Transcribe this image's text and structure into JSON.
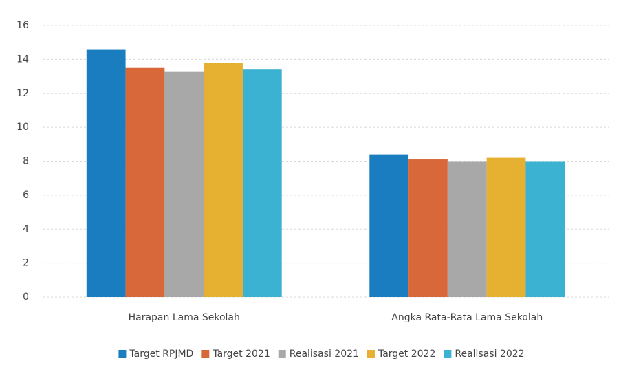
{
  "chart_data": {
    "type": "bar",
    "categories": [
      "Harapan Lama Sekolah",
      "Angka Rata-Rata Lama Sekolah"
    ],
    "series": [
      {
        "name": "Target RPJMD",
        "color": "#1a7dc0",
        "values": [
          14.6,
          8.4
        ]
      },
      {
        "name": "Target 2021",
        "color": "#d8683a",
        "values": [
          13.5,
          8.1
        ]
      },
      {
        "name": "Realisasi 2021",
        "color": "#a8a8a8",
        "values": [
          13.3,
          8.0
        ]
      },
      {
        "name": "Target 2022",
        "color": "#e6b030",
        "values": [
          13.8,
          8.2
        ]
      },
      {
        "name": "Realisasi 2022",
        "color": "#3cb2d2",
        "values": [
          13.4,
          8.0
        ]
      }
    ],
    "ylim": [
      0,
      16
    ],
    "yticks": [
      0,
      2,
      4,
      6,
      8,
      10,
      12,
      14,
      16
    ],
    "grid": true,
    "legend": "bottom"
  }
}
